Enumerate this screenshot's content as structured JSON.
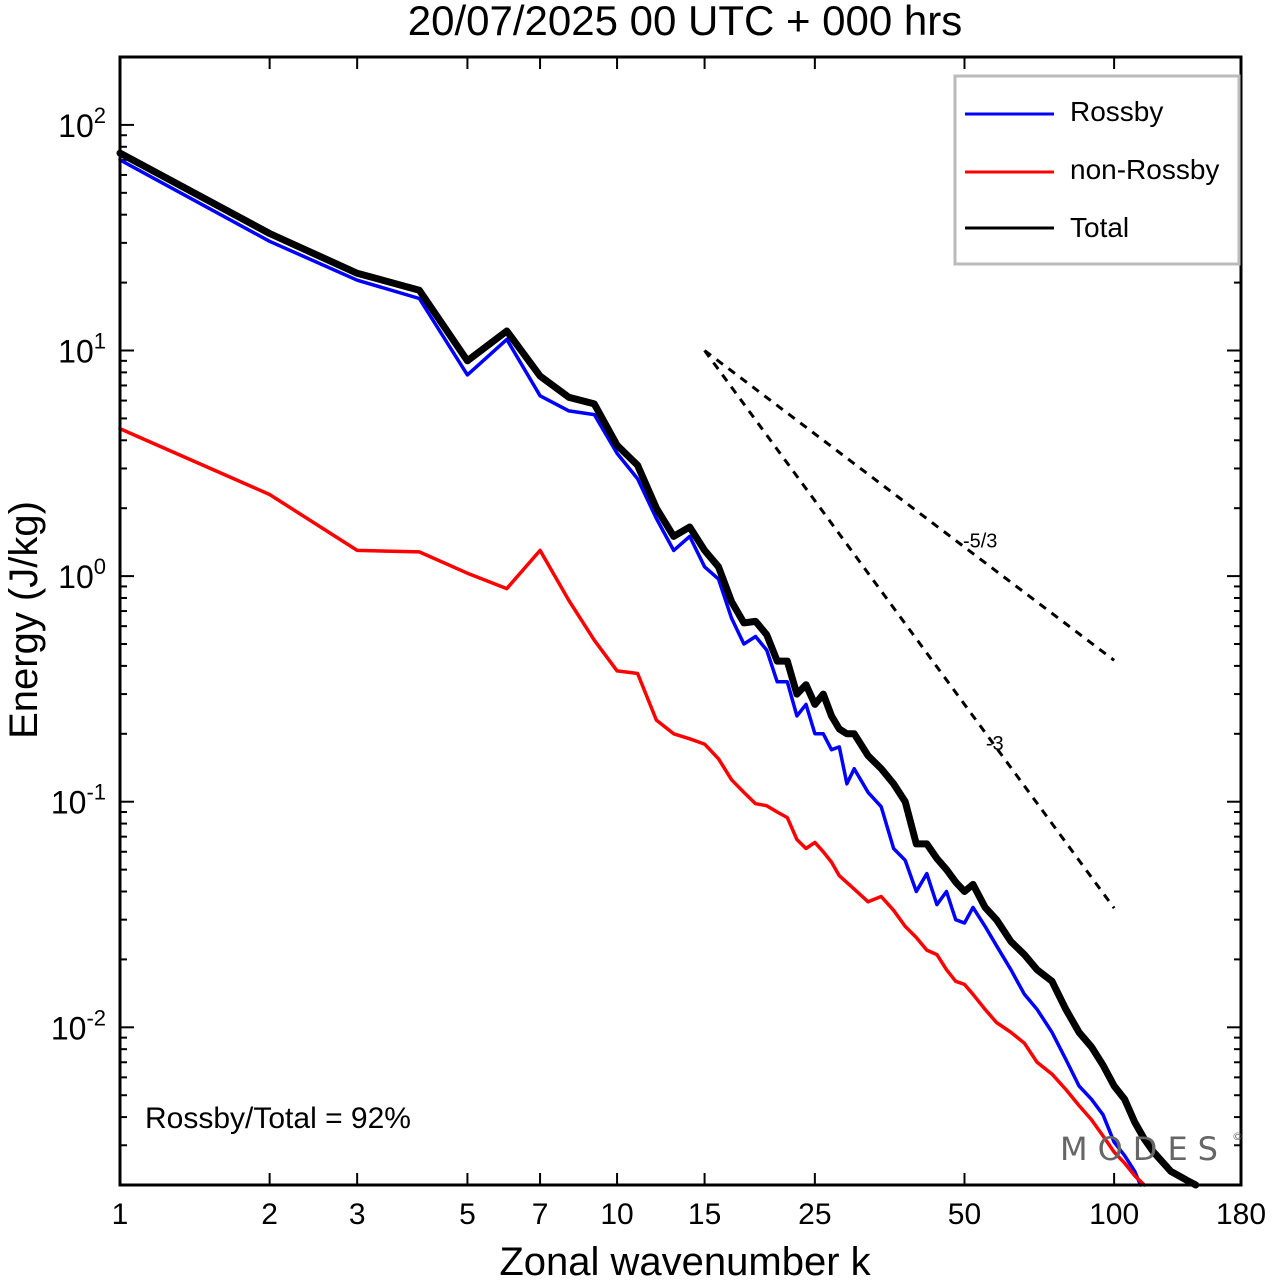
{
  "chart_data": {
    "type": "line",
    "title": "20/07/2025  00 UTC  + 000 hrs",
    "xlabel": "Zonal wavenumber k",
    "ylabel": "Energy (J/kg)",
    "x_scale": "log",
    "y_scale": "log",
    "xlim": [
      1,
      180
    ],
    "ylim": [
      0.002,
      200
    ],
    "x_ticks": [
      1,
      2,
      3,
      5,
      7,
      10,
      15,
      25,
      50,
      100,
      180
    ],
    "y_ticks": [
      {
        "value": 100,
        "base": "10",
        "exp": "2"
      },
      {
        "value": 10,
        "base": "10",
        "exp": "1"
      },
      {
        "value": 1,
        "base": "10",
        "exp": "0"
      },
      {
        "value": 0.1,
        "base": "10",
        "exp": "-1"
      },
      {
        "value": 0.01,
        "base": "10",
        "exp": "-2"
      }
    ],
    "legend": {
      "position": "top-right"
    },
    "series": [
      {
        "name": "Rossby",
        "color": "#0000ff",
        "points": [
          [
            1,
            70
          ],
          [
            2,
            30.5
          ],
          [
            3,
            20.5
          ],
          [
            4,
            17
          ],
          [
            5,
            7.8
          ],
          [
            6,
            11.2
          ],
          [
            7,
            6.3
          ],
          [
            8,
            5.4
          ],
          [
            9,
            5.2
          ],
          [
            10,
            3.5
          ],
          [
            11,
            2.7
          ],
          [
            12,
            1.8
          ],
          [
            13,
            1.3
          ],
          [
            14,
            1.5
          ],
          [
            15,
            1.1
          ],
          [
            16,
            0.97
          ],
          [
            17,
            0.65
          ],
          [
            18,
            0.5
          ],
          [
            19,
            0.54
          ],
          [
            20,
            0.47
          ],
          [
            21,
            0.34
          ],
          [
            22,
            0.34
          ],
          [
            23,
            0.24
          ],
          [
            24,
            0.27
          ],
          [
            25,
            0.2
          ],
          [
            26,
            0.2
          ],
          [
            27,
            0.17
          ],
          [
            28,
            0.175
          ],
          [
            29,
            0.12
          ],
          [
            30,
            0.14
          ],
          [
            32,
            0.11
          ],
          [
            34,
            0.095
          ],
          [
            36,
            0.062
          ],
          [
            38,
            0.055
          ],
          [
            40,
            0.04
          ],
          [
            42,
            0.048
          ],
          [
            44,
            0.035
          ],
          [
            46,
            0.04
          ],
          [
            48,
            0.03
          ],
          [
            50,
            0.029
          ],
          [
            52,
            0.034
          ],
          [
            55,
            0.028
          ],
          [
            58,
            0.023
          ],
          [
            62,
            0.018
          ],
          [
            66,
            0.014
          ],
          [
            70,
            0.012
          ],
          [
            75,
            0.0095
          ],
          [
            80,
            0.0072
          ],
          [
            85,
            0.0055
          ],
          [
            90,
            0.0048
          ],
          [
            95,
            0.0041
          ],
          [
            100,
            0.0031
          ],
          [
            105,
            0.0027
          ],
          [
            110,
            0.0023
          ],
          [
            113,
            0.002
          ]
        ]
      },
      {
        "name": "non-Rossby",
        "color": "#ff0000",
        "points": [
          [
            1,
            4.5
          ],
          [
            2,
            2.3
          ],
          [
            3,
            1.3
          ],
          [
            4,
            1.28
          ],
          [
            5,
            1.03
          ],
          [
            6,
            0.88
          ],
          [
            7,
            1.3
          ],
          [
            8,
            0.78
          ],
          [
            9,
            0.52
          ],
          [
            10,
            0.38
          ],
          [
            11,
            0.37
          ],
          [
            12,
            0.23
          ],
          [
            13,
            0.2
          ],
          [
            14,
            0.19
          ],
          [
            15,
            0.18
          ],
          [
            16,
            0.155
          ],
          [
            17,
            0.125
          ],
          [
            18,
            0.11
          ],
          [
            19,
            0.098
          ],
          [
            20,
            0.096
          ],
          [
            21,
            0.09
          ],
          [
            22,
            0.085
          ],
          [
            23,
            0.068
          ],
          [
            24,
            0.062
          ],
          [
            25,
            0.066
          ],
          [
            26,
            0.06
          ],
          [
            27,
            0.054
          ],
          [
            28,
            0.047
          ],
          [
            30,
            0.041
          ],
          [
            32,
            0.036
          ],
          [
            34,
            0.038
          ],
          [
            36,
            0.033
          ],
          [
            38,
            0.028
          ],
          [
            40,
            0.025
          ],
          [
            42,
            0.022
          ],
          [
            44,
            0.021
          ],
          [
            46,
            0.018
          ],
          [
            48,
            0.016
          ],
          [
            50,
            0.0155
          ],
          [
            52,
            0.014
          ],
          [
            55,
            0.012
          ],
          [
            58,
            0.0105
          ],
          [
            62,
            0.0095
          ],
          [
            66,
            0.0085
          ],
          [
            70,
            0.007
          ],
          [
            75,
            0.0062
          ],
          [
            80,
            0.0053
          ],
          [
            85,
            0.0045
          ],
          [
            90,
            0.0039
          ],
          [
            95,
            0.0033
          ],
          [
            100,
            0.0028
          ],
          [
            105,
            0.0025
          ],
          [
            110,
            0.0022
          ],
          [
            115,
            0.002
          ]
        ]
      },
      {
        "name": "Total",
        "color": "#000000",
        "points": [
          [
            1,
            75
          ],
          [
            2,
            33
          ],
          [
            3,
            22
          ],
          [
            4,
            18.5
          ],
          [
            5,
            9
          ],
          [
            6,
            12.2
          ],
          [
            7,
            7.7
          ],
          [
            8,
            6.2
          ],
          [
            9,
            5.8
          ],
          [
            10,
            3.8
          ],
          [
            11,
            3.1
          ],
          [
            12,
            2
          ],
          [
            13,
            1.5
          ],
          [
            14,
            1.65
          ],
          [
            15,
            1.3
          ],
          [
            16,
            1.1
          ],
          [
            17,
            0.77
          ],
          [
            18,
            0.62
          ],
          [
            19,
            0.63
          ],
          [
            20,
            0.55
          ],
          [
            21,
            0.42
          ],
          [
            22,
            0.42
          ],
          [
            23,
            0.3
          ],
          [
            24,
            0.33
          ],
          [
            25,
            0.27
          ],
          [
            26,
            0.3
          ],
          [
            27,
            0.24
          ],
          [
            28,
            0.21
          ],
          [
            29,
            0.2
          ],
          [
            30,
            0.2
          ],
          [
            32,
            0.16
          ],
          [
            34,
            0.14
          ],
          [
            36,
            0.12
          ],
          [
            38,
            0.1
          ],
          [
            40,
            0.065
          ],
          [
            42,
            0.065
          ],
          [
            44,
            0.056
          ],
          [
            46,
            0.05
          ],
          [
            48,
            0.044
          ],
          [
            50,
            0.04
          ],
          [
            52,
            0.043
          ],
          [
            55,
            0.034
          ],
          [
            58,
            0.03
          ],
          [
            62,
            0.024
          ],
          [
            66,
            0.021
          ],
          [
            70,
            0.018
          ],
          [
            75,
            0.016
          ],
          [
            80,
            0.012
          ],
          [
            85,
            0.0095
          ],
          [
            90,
            0.0082
          ],
          [
            95,
            0.0068
          ],
          [
            100,
            0.0055
          ],
          [
            105,
            0.0048
          ],
          [
            110,
            0.0038
          ],
          [
            115,
            0.0032
          ],
          [
            120,
            0.0028
          ],
          [
            130,
            0.0023
          ],
          [
            140,
            0.0021
          ],
          [
            146,
            0.002
          ]
        ]
      }
    ],
    "reference_lines": [
      {
        "label": "-5/3",
        "slope": -1.6667,
        "x_start": 15,
        "x_end": 100,
        "y_start": 10
      },
      {
        "label": "-3",
        "slope": -3,
        "x_start": 15,
        "x_end": 100,
        "y_start": 10
      }
    ],
    "annotations": {
      "ratio_text": "Rossby/Total = 92%",
      "watermark": "MODES"
    }
  }
}
